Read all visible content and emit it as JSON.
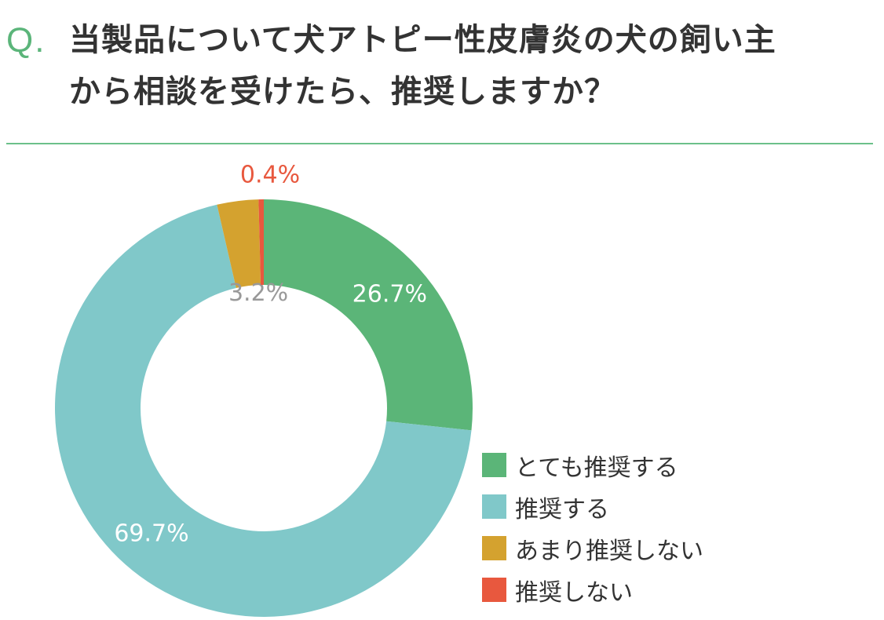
{
  "question": {
    "prefix": "Q.",
    "line1": "当製品について犬アトピー性皮膚炎の犬の飼い主",
    "line2": "から相談を受けたら、推奨しますか？"
  },
  "colors": {
    "accent": "#5bb57a",
    "divider": "#6cc08a",
    "text": "#333333"
  },
  "chart_data": {
    "type": "pie",
    "variant": "donut",
    "categories": [
      "とても推奨する",
      "推奨する",
      "あまり推奨しない",
      "推奨しない"
    ],
    "values": [
      26.7,
      69.7,
      3.2,
      0.4
    ],
    "labels": [
      "26.7%",
      "69.7%",
      "3.2%",
      "0.4%"
    ],
    "colors": [
      "#5bb578",
      "#80c8c9",
      "#d4a22f",
      "#e8583e"
    ],
    "label_colors": [
      "#ffffff",
      "#ffffff",
      "#999999",
      "#e8583e"
    ],
    "legend_position": "bottom-right"
  }
}
